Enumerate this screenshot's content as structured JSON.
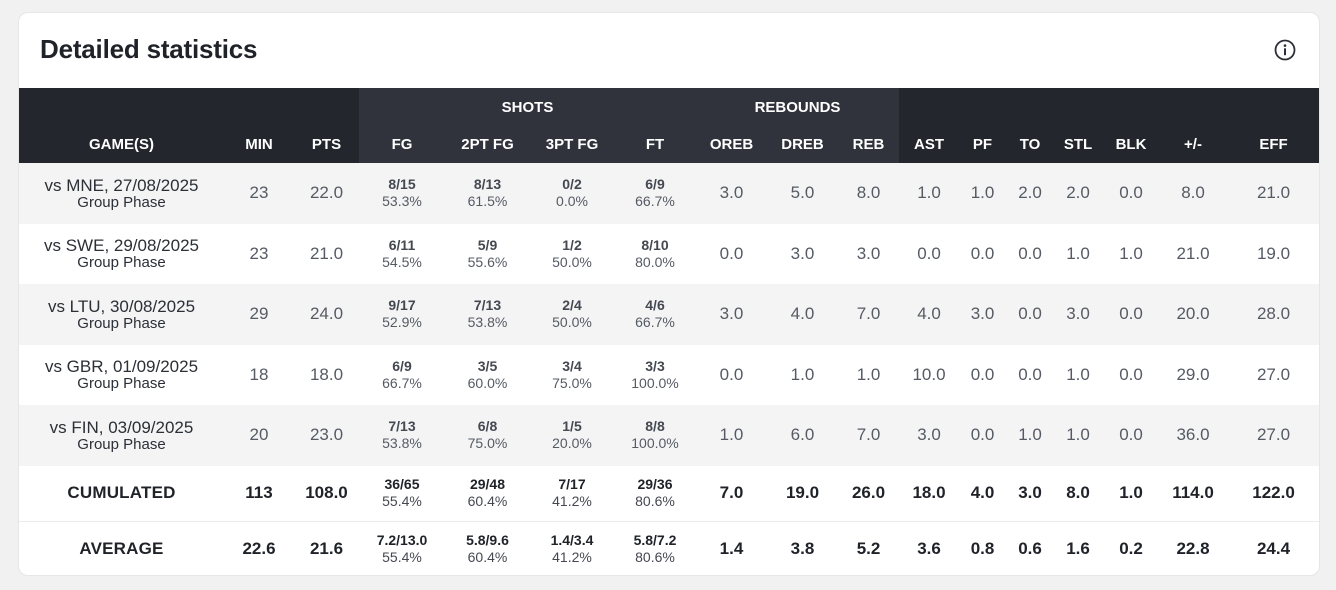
{
  "title": "Detailed statistics",
  "info_icon": "info-circle-icon",
  "groups": {
    "shots": "SHOTS",
    "rebounds": "REBOUNDS"
  },
  "columns": {
    "game": "GAME(S)",
    "min": "MIN",
    "pts": "PTS",
    "fg": "FG",
    "fg2": "2PT FG",
    "fg3": "3PT FG",
    "ft": "FT",
    "oreb": "OREB",
    "dreb": "DREB",
    "reb": "REB",
    "ast": "AST",
    "pf": "PF",
    "to": "TO",
    "stl": "STL",
    "blk": "BLK",
    "pm": "+/-",
    "eff": "EFF"
  },
  "games": [
    {
      "name": "vs MNE, 27/08/2025",
      "phase": "Group Phase",
      "min": "23",
      "pts": "22.0",
      "fg": "8/15",
      "fg_pct": "53.3%",
      "fg2": "8/13",
      "fg2_pct": "61.5%",
      "fg3": "0/2",
      "fg3_pct": "0.0%",
      "ft": "6/9",
      "ft_pct": "66.7%",
      "oreb": "3.0",
      "dreb": "5.0",
      "reb": "8.0",
      "ast": "1.0",
      "pf": "1.0",
      "to": "2.0",
      "stl": "2.0",
      "blk": "0.0",
      "pm": "8.0",
      "eff": "21.0"
    },
    {
      "name": "vs SWE, 29/08/2025",
      "phase": "Group Phase",
      "min": "23",
      "pts": "21.0",
      "fg": "6/11",
      "fg_pct": "54.5%",
      "fg2": "5/9",
      "fg2_pct": "55.6%",
      "fg3": "1/2",
      "fg3_pct": "50.0%",
      "ft": "8/10",
      "ft_pct": "80.0%",
      "oreb": "0.0",
      "dreb": "3.0",
      "reb": "3.0",
      "ast": "0.0",
      "pf": "0.0",
      "to": "0.0",
      "stl": "1.0",
      "blk": "1.0",
      "pm": "21.0",
      "eff": "19.0"
    },
    {
      "name": "vs LTU, 30/08/2025",
      "phase": "Group Phase",
      "min": "29",
      "pts": "24.0",
      "fg": "9/17",
      "fg_pct": "52.9%",
      "fg2": "7/13",
      "fg2_pct": "53.8%",
      "fg3": "2/4",
      "fg3_pct": "50.0%",
      "ft": "4/6",
      "ft_pct": "66.7%",
      "oreb": "3.0",
      "dreb": "4.0",
      "reb": "7.0",
      "ast": "4.0",
      "pf": "3.0",
      "to": "0.0",
      "stl": "3.0",
      "blk": "0.0",
      "pm": "20.0",
      "eff": "28.0"
    },
    {
      "name": "vs GBR, 01/09/2025",
      "phase": "Group Phase",
      "min": "18",
      "pts": "18.0",
      "fg": "6/9",
      "fg_pct": "66.7%",
      "fg2": "3/5",
      "fg2_pct": "60.0%",
      "fg3": "3/4",
      "fg3_pct": "75.0%",
      "ft": "3/3",
      "ft_pct": "100.0%",
      "oreb": "0.0",
      "dreb": "1.0",
      "reb": "1.0",
      "ast": "10.0",
      "pf": "0.0",
      "to": "0.0",
      "stl": "1.0",
      "blk": "0.0",
      "pm": "29.0",
      "eff": "27.0"
    },
    {
      "name": "vs FIN, 03/09/2025",
      "phase": "Group Phase",
      "min": "20",
      "pts": "23.0",
      "fg": "7/13",
      "fg_pct": "53.8%",
      "fg2": "6/8",
      "fg2_pct": "75.0%",
      "fg3": "1/5",
      "fg3_pct": "20.0%",
      "ft": "8/8",
      "ft_pct": "100.0%",
      "oreb": "1.0",
      "dreb": "6.0",
      "reb": "7.0",
      "ast": "3.0",
      "pf": "0.0",
      "to": "1.0",
      "stl": "1.0",
      "blk": "0.0",
      "pm": "36.0",
      "eff": "27.0"
    }
  ],
  "cumulated": {
    "label": "CUMULATED",
    "min": "113",
    "pts": "108.0",
    "fg": "36/65",
    "fg_pct": "55.4%",
    "fg2": "29/48",
    "fg2_pct": "60.4%",
    "fg3": "7/17",
    "fg3_pct": "41.2%",
    "ft": "29/36",
    "ft_pct": "80.6%",
    "oreb": "7.0",
    "dreb": "19.0",
    "reb": "26.0",
    "ast": "18.0",
    "pf": "4.0",
    "to": "3.0",
    "stl": "8.0",
    "blk": "1.0",
    "pm": "114.0",
    "eff": "122.0"
  },
  "average": {
    "label": "AVERAGE",
    "min": "22.6",
    "pts": "21.6",
    "fg": "7.2/13.0",
    "fg_pct": "55.4%",
    "fg2": "5.8/9.6",
    "fg2_pct": "60.4%",
    "fg3": "1.4/3.4",
    "fg3_pct": "41.2%",
    "ft": "5.8/7.2",
    "ft_pct": "80.6%",
    "oreb": "1.4",
    "dreb": "3.8",
    "reb": "5.2",
    "ast": "3.6",
    "pf": "0.8",
    "to": "0.6",
    "stl": "1.6",
    "blk": "0.2",
    "pm": "22.8",
    "eff": "24.4"
  }
}
